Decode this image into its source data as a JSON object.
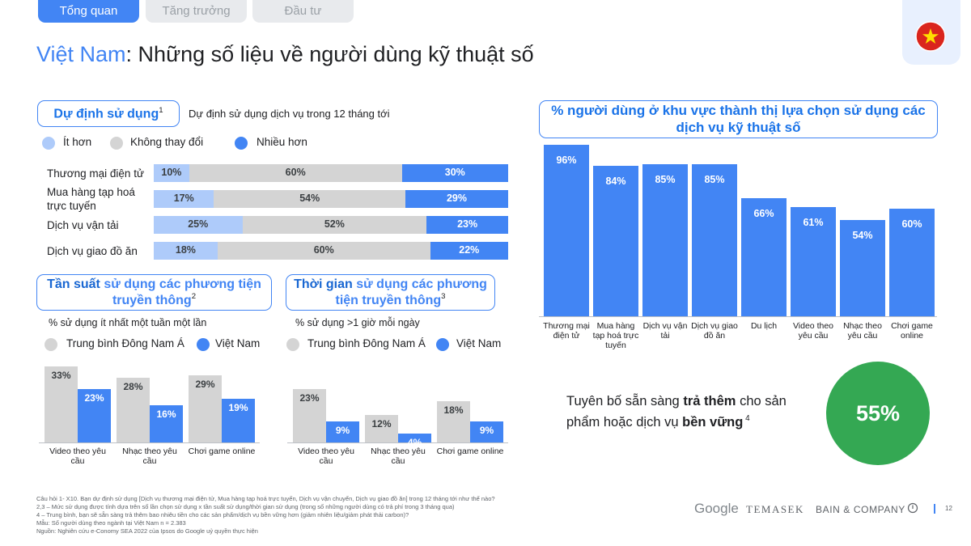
{
  "tabs": [
    "Tổng quan",
    "Tăng trưởng",
    "Đầu tư"
  ],
  "title": [
    "Việt Nam",
    ": Những số liệu về người dùng kỹ thuật số"
  ],
  "chart_data": [
    {
      "type": "bar",
      "orientation": "horizontal",
      "stacked": true,
      "title": [
        "Dự định sử dụng"
      ],
      "title_note": "1",
      "subtitle": "Dự định sử dụng dịch vụ trong 12 tháng tới",
      "categories": [
        "Thương mại điện tử",
        "Mua hàng tạp hoá trực tuyến",
        "Dịch vụ vận tải",
        "Dịch vụ giao đồ ăn"
      ],
      "xlim": [
        0,
        100
      ],
      "series": [
        {
          "name": "Ít hơn",
          "color": "#aecbfa",
          "values": [
            10,
            17,
            25,
            18
          ],
          "value_labels": [
            "10%",
            "17%",
            "25%",
            "18%"
          ]
        },
        {
          "name": "Không thay đổi",
          "color": "#d4d4d4",
          "values": [
            60,
            54,
            52,
            60
          ],
          "value_labels": [
            "60%",
            "54%",
            "52%",
            "60%"
          ]
        },
        {
          "name": "Nhiều hơn",
          "color": "#4285f4",
          "values": [
            30,
            29,
            23,
            22
          ],
          "value_labels": [
            "30%",
            "29%",
            "23%",
            "22%"
          ]
        }
      ]
    },
    {
      "type": "bar",
      "title": [
        "Tần suất",
        "sử dụng các phương tiện truyền thông"
      ],
      "title_note": "2",
      "subtitle": "% sử dụng ít nhất một tuần một lần",
      "categories": [
        "Video theo yêu cầu",
        "Nhạc theo yêu cầu",
        "Chơi game online"
      ],
      "ylim": [
        0,
        40
      ],
      "series": [
        {
          "name": "Trung bình Đông Nam Á",
          "color": "#d4d4d4",
          "values": [
            33,
            28,
            29
          ],
          "value_labels": [
            "33%",
            "28%",
            "29%"
          ]
        },
        {
          "name": "Việt Nam",
          "color": "#4285f4",
          "values": [
            23,
            16,
            19
          ],
          "value_labels": [
            "23%",
            "16%",
            "19%"
          ]
        }
      ]
    },
    {
      "type": "bar",
      "title": [
        "Thời gian",
        "sử dụng các phương tiện truyền thông"
      ],
      "title_note": "3",
      "subtitle": "% sử dụng >1 giờ mỗi ngày",
      "categories": [
        "Video theo yêu cầu",
        "Nhạc theo yêu cầu",
        "Chơi game online"
      ],
      "ylim": [
        0,
        40
      ],
      "series": [
        {
          "name": "Trung bình Đông Nam Á",
          "color": "#d4d4d4",
          "values": [
            23,
            12,
            18
          ],
          "value_labels": [
            "23%",
            "12%",
            "18%"
          ]
        },
        {
          "name": "Việt Nam",
          "color": "#4285f4",
          "values": [
            9,
            4,
            9
          ],
          "value_labels": [
            "9%",
            "4%",
            "9%"
          ]
        }
      ]
    },
    {
      "type": "bar",
      "title": [
        "% người dùng ở khu vực thành thị lựa chọn sử dụng các dịch vụ kỹ thuật số"
      ],
      "categories": [
        "Thương mại điện tử",
        "Mua hàng tạp hoá trực tuyến",
        "Dịch vụ vận tải",
        "Dịch vụ giao đồ ăn",
        "Du lịch",
        "Video theo yêu cầu",
        "Nhạc theo yêu cầu",
        "Chơi game online"
      ],
      "ylim": [
        0,
        100
      ],
      "color": "#4285f4",
      "values": [
        96,
        84,
        85,
        85,
        66,
        61,
        54,
        60
      ],
      "value_labels": [
        "96%",
        "84%",
        "85%",
        "85%",
        "66%",
        "61%",
        "54%",
        "60%"
      ]
    }
  ],
  "callout": {
    "text": [
      "Tuyên bố sẵn sàng",
      "trả thêm",
      "cho sản phẩm hoặc dịch vụ",
      "bền vững"
    ],
    "note": "4",
    "stat": "55%"
  },
  "footnotes": [
    "Câu hỏi 1- X10. Bạn dự định sử dụng [Dịch vụ thương mại điện tử, Mua hàng tạp hoá trực tuyến, Dịch vụ vận chuyển, Dịch vụ giao đồ ăn] trong 12 tháng tới như thế nào?",
    "2,3 – Mức sử dụng được tính dựa trên số lần chọn sử dụng x tần suất sử dụng/thời gian sử dụng (trong số những người dùng có trả phí trong 3 tháng qua)",
    "4 – Trung bình, bạn sẽ sẵn sàng trả thêm bao nhiêu tiền cho các sản phẩm/dịch vụ bền vững hơn (giảm nhiên liệu/giảm phát thải carbon)?",
    "Mẫu: Số người dùng theo ngành tại Việt Nam n = 2.383",
    "Nguồn: Nghiên cứu e-Conomy SEA 2022 của Ipsos do Google uỷ quyền thực hiện"
  ],
  "logos": [
    "Google",
    "TEMASEK",
    "BAIN & COMPANY"
  ],
  "page_number": "12"
}
